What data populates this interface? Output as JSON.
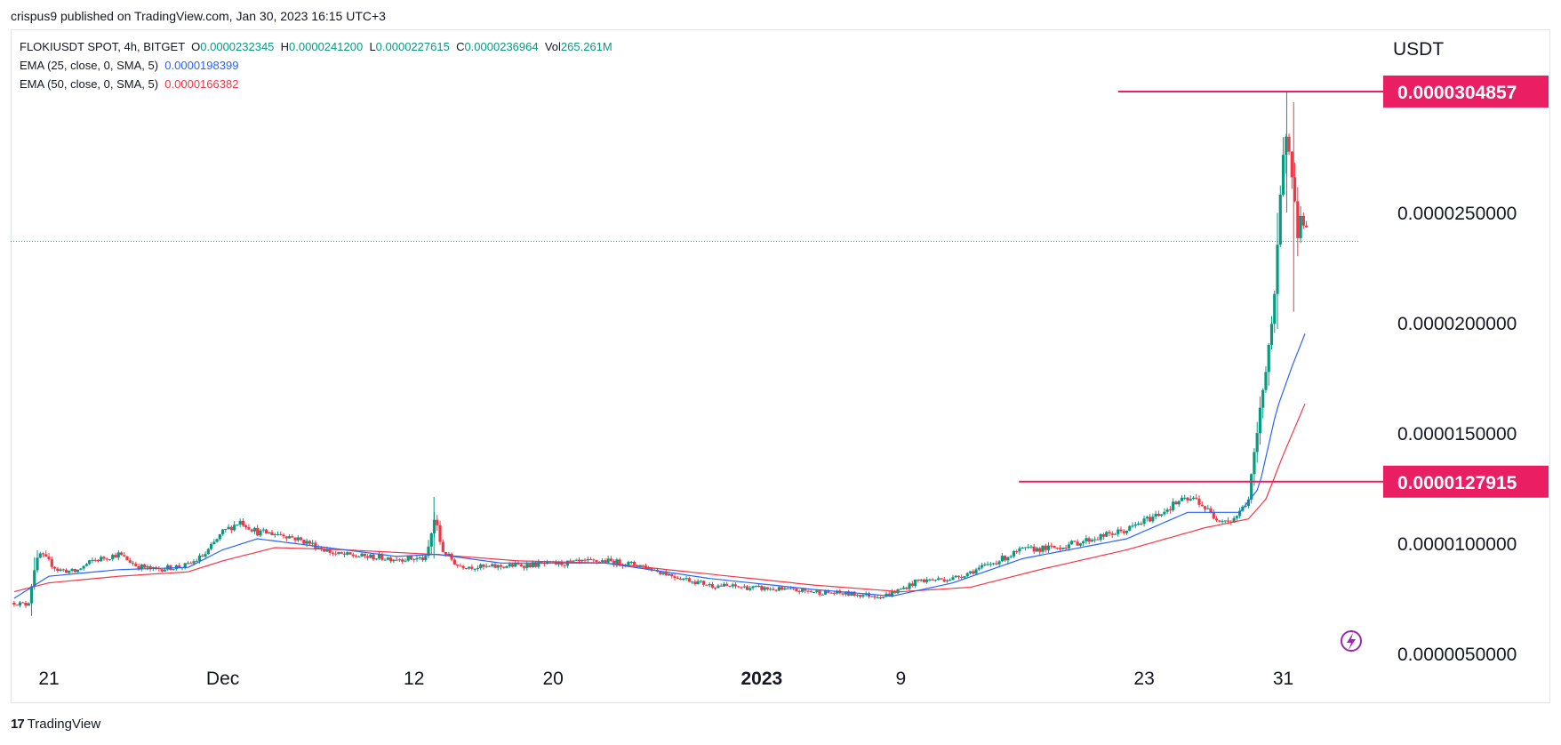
{
  "publish_line": "crispus9 published on TradingView.com, Jan 30, 2023 16:15 UTC+3",
  "legend": {
    "symbol": "FLOKIUSDT SPOT, 4h, BITGET",
    "o_label": "O",
    "o_value": "0.0000232345",
    "h_label": "H",
    "h_value": "0.0000241200",
    "l_label": "L",
    "l_value": "0.0000227615",
    "c_label": "C",
    "c_value": "0.0000236964",
    "vol_label": "Vol",
    "vol_value": "265.261M",
    "ema25_label": "EMA (25, close, 0, SMA, 5)",
    "ema25_value": "0.0000198399",
    "ema50_label": "EMA (50, close, 0, SMA, 5)",
    "ema50_value": "0.0000166382"
  },
  "footer_brand": "TradingView",
  "colors": {
    "up": "#089981",
    "down": "#f23645",
    "ema25": "#2962ff",
    "ema50": "#f23645",
    "hline": "#e91e63",
    "pricebox": "#e91e63",
    "axis_text": "#131722",
    "lastline": "#089981"
  },
  "chart_data": {
    "type": "candlestick",
    "title": "FLOKIUSDT SPOT, 4h, BITGET",
    "currency_label": "USDT",
    "ylim": [
      4.5e-06,
      3.35e-05
    ],
    "y_ticks": [
      "0.0000050000",
      "0.0000100000",
      "0.0000150000",
      "0.0000200000",
      "0.0000250000"
    ],
    "y_tick_values": [
      5e-06,
      1e-05,
      1.5e-05,
      2e-05,
      2.5e-05
    ],
    "x_ticks": [
      {
        "label": "21",
        "day": 0,
        "bold": false
      },
      {
        "label": "Dec",
        "day": 10,
        "bold": false
      },
      {
        "label": "12",
        "day": 21,
        "bold": false
      },
      {
        "label": "20",
        "day": 29,
        "bold": false
      },
      {
        "label": "2023",
        "day": 41,
        "bold": true
      },
      {
        "label": "9",
        "day": 49,
        "bold": false
      },
      {
        "label": "23",
        "day": 63,
        "bold": false
      },
      {
        "label": "31",
        "day": 71,
        "bold": false
      }
    ],
    "x_range_days": [
      -2.2,
      76.7
    ],
    "horizontal_levels": [
      {
        "label": "0.0000304857",
        "value": 3.04857e-05,
        "from_day": 61.5
      },
      {
        "label": "0.0000127915",
        "value": 1.27915e-05,
        "from_day": 55.8
      }
    ],
    "last_price": 2.36964e-05,
    "price_anchors": [
      [
        -2.0,
        7.3e-06
      ],
      [
        -1.2,
        7.2e-06
      ],
      [
        -0.8,
        9e-06
      ],
      [
        -0.5,
        9.5e-06
      ],
      [
        0.5,
        8.8e-06
      ],
      [
        1.5,
        8.7e-06
      ],
      [
        2.5,
        9.2e-06
      ],
      [
        4.0,
        9.5e-06
      ],
      [
        5.0,
        9e-06
      ],
      [
        6.0,
        8.8e-06
      ],
      [
        8.0,
        9e-06
      ],
      [
        9.0,
        9.5e-06
      ],
      [
        10.0,
        1.05e-05
      ],
      [
        11.0,
        1.1e-05
      ],
      [
        12.0,
        1.05e-05
      ],
      [
        13.5,
        1.04e-05
      ],
      [
        15.0,
        1e-05
      ],
      [
        16.5,
        9.5e-06
      ],
      [
        18.0,
        9.4e-06
      ],
      [
        20.0,
        9.3e-06
      ],
      [
        21.7,
        9.3e-06
      ],
      [
        22.2,
        1.12e-05
      ],
      [
        22.6,
        9.7e-06
      ],
      [
        23.5,
        9e-06
      ],
      [
        25.0,
        8.9e-06
      ],
      [
        27.0,
        9e-06
      ],
      [
        30.0,
        9.1e-06
      ],
      [
        32.0,
        9.2e-06
      ],
      [
        34.0,
        9e-06
      ],
      [
        36.0,
        8.5e-06
      ],
      [
        38.0,
        8.1e-06
      ],
      [
        42.0,
        7.9e-06
      ],
      [
        46.0,
        7.7e-06
      ],
      [
        48.0,
        7.6e-06
      ],
      [
        49.0,
        7.9e-06
      ],
      [
        50.0,
        8.3e-06
      ],
      [
        52.0,
        8.4e-06
      ],
      [
        54.0,
        9e-06
      ],
      [
        56.0,
        9.7e-06
      ],
      [
        58.0,
        9.8e-06
      ],
      [
        60.0,
        1.02e-05
      ],
      [
        62.0,
        1.06e-05
      ],
      [
        64.0,
        1.14e-05
      ],
      [
        65.0,
        1.19e-05
      ],
      [
        66.0,
        1.2e-05
      ],
      [
        67.0,
        1.12e-05
      ],
      [
        68.0,
        1.1e-05
      ],
      [
        68.5,
        1.14e-05
      ],
      [
        69.0,
        1.2e-05
      ],
      [
        69.5,
        1.5e-05
      ],
      [
        70.0,
        1.8e-05
      ],
      [
        70.5,
        2.1e-05
      ],
      [
        70.9,
        2.65e-05
      ],
      [
        71.2,
        2.9e-05
      ],
      [
        71.5,
        2.7e-05
      ],
      [
        71.8,
        2.4e-05
      ],
      [
        72.1,
        2.5e-05
      ],
      [
        72.4,
        2.37e-05
      ]
    ],
    "ema25_anchors": [
      [
        -2.0,
        7.5e-06
      ],
      [
        0.0,
        8.5e-06
      ],
      [
        4.0,
        8.8e-06
      ],
      [
        8.0,
        8.9e-06
      ],
      [
        10.0,
        9.7e-06
      ],
      [
        12.0,
        1.02e-05
      ],
      [
        15.0,
        9.9e-06
      ],
      [
        20.0,
        9.4e-06
      ],
      [
        22.3,
        9.5e-06
      ],
      [
        26.0,
        9.1e-06
      ],
      [
        32.0,
        9.1e-06
      ],
      [
        38.0,
        8.4e-06
      ],
      [
        44.0,
        7.9e-06
      ],
      [
        48.5,
        7.6e-06
      ],
      [
        52.0,
        8.2e-06
      ],
      [
        56.0,
        9.3e-06
      ],
      [
        62.0,
        1.02e-05
      ],
      [
        65.5,
        1.14e-05
      ],
      [
        68.5,
        1.14e-05
      ],
      [
        69.6,
        1.25e-05
      ],
      [
        70.6,
        1.6e-05
      ],
      [
        71.5,
        1.8e-05
      ],
      [
        72.4,
        1.98e-05
      ]
    ],
    "ema50_anchors": [
      [
        -2.0,
        7.8e-06
      ],
      [
        0.0,
        8.2e-06
      ],
      [
        4.0,
        8.5e-06
      ],
      [
        8.0,
        8.7e-06
      ],
      [
        10.0,
        9.2e-06
      ],
      [
        13.0,
        9.8e-06
      ],
      [
        17.0,
        9.7e-06
      ],
      [
        22.0,
        9.5e-06
      ],
      [
        27.0,
        9.2e-06
      ],
      [
        32.0,
        9.1e-06
      ],
      [
        38.0,
        8.6e-06
      ],
      [
        44.0,
        8.1e-06
      ],
      [
        49.0,
        7.8e-06
      ],
      [
        53.0,
        8e-06
      ],
      [
        57.0,
        8.8e-06
      ],
      [
        62.0,
        9.7e-06
      ],
      [
        66.5,
        1.07e-05
      ],
      [
        69.0,
        1.11e-05
      ],
      [
        70.0,
        1.2e-05
      ],
      [
        71.0,
        1.4e-05
      ],
      [
        72.4,
        1.66e-05
      ]
    ],
    "candles_per_day": 6,
    "series_names": [
      "FLOKIUSDT",
      "EMA (25, close, 0, SMA, 5)",
      "EMA (50, close, 0, SMA, 5)"
    ]
  }
}
